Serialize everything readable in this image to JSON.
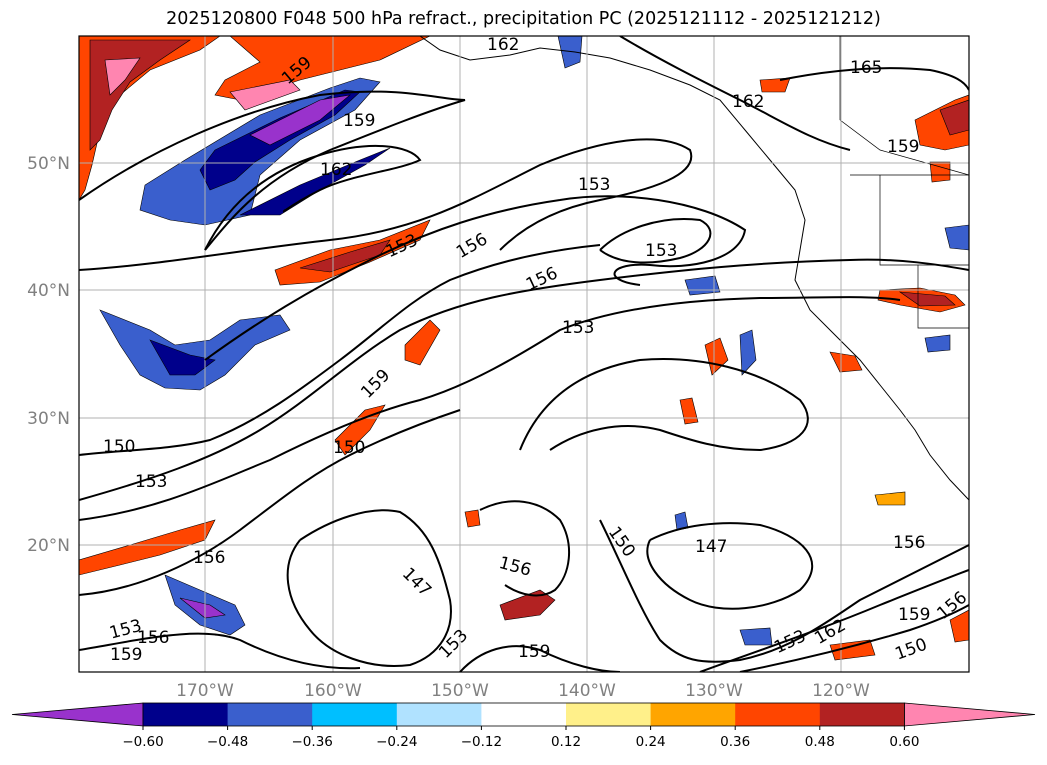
{
  "title": "2025120800 F048 500 hPa refract., precipitation PC (2025121112 - 2025121212)",
  "map": {
    "lat_labels": [
      "50°N",
      "40°N",
      "30°N",
      "20°N"
    ],
    "lon_labels": [
      "170°W",
      "160°W",
      "150°W",
      "140°W",
      "130°W",
      "120°W"
    ],
    "contour_labels": [
      "162",
      "159",
      "165",
      "162",
      "159",
      "159",
      "162",
      "153",
      "153",
      "156",
      "153",
      "156",
      "153",
      "159",
      "150",
      "150",
      "153",
      "156",
      "147",
      "156",
      "150",
      "147",
      "156",
      "153",
      "156",
      "159",
      "153",
      "159",
      "153",
      "162",
      "159",
      "156",
      "150"
    ]
  },
  "colorbar": {
    "ticks": [
      "−0.60",
      "−0.48",
      "−0.36",
      "−0.24",
      "−0.12",
      "0.12",
      "0.24",
      "0.36",
      "0.48",
      "0.60"
    ],
    "colors": [
      "#9932cc",
      "#00008b",
      "#3a5fcd",
      "#00bfff",
      "#b0e2ff",
      "#ffffff",
      "#fff08a",
      "#ffa500",
      "#ff4500",
      "#b22222",
      "#ff85b0"
    ]
  },
  "chart_data": {
    "type": "heatmap",
    "title": "2025120800 F048 500 hPa refract., precipitation PC (2025121112 - 2025121212)",
    "xlabel": "",
    "ylabel": "",
    "x_ticks": [
      "170°W",
      "160°W",
      "150°W",
      "140°W",
      "130°W",
      "120°W"
    ],
    "y_ticks": [
      "50°N",
      "40°N",
      "30°N",
      "20°N"
    ],
    "contour_levels": [
      147,
      150,
      153,
      156,
      159,
      162,
      165
    ],
    "colorbar_levels": [
      -0.6,
      -0.48,
      -0.36,
      -0.24,
      -0.12,
      0.12,
      0.24,
      0.36,
      0.48,
      0.6
    ],
    "colorbar_extend": "both",
    "grid": true
  }
}
